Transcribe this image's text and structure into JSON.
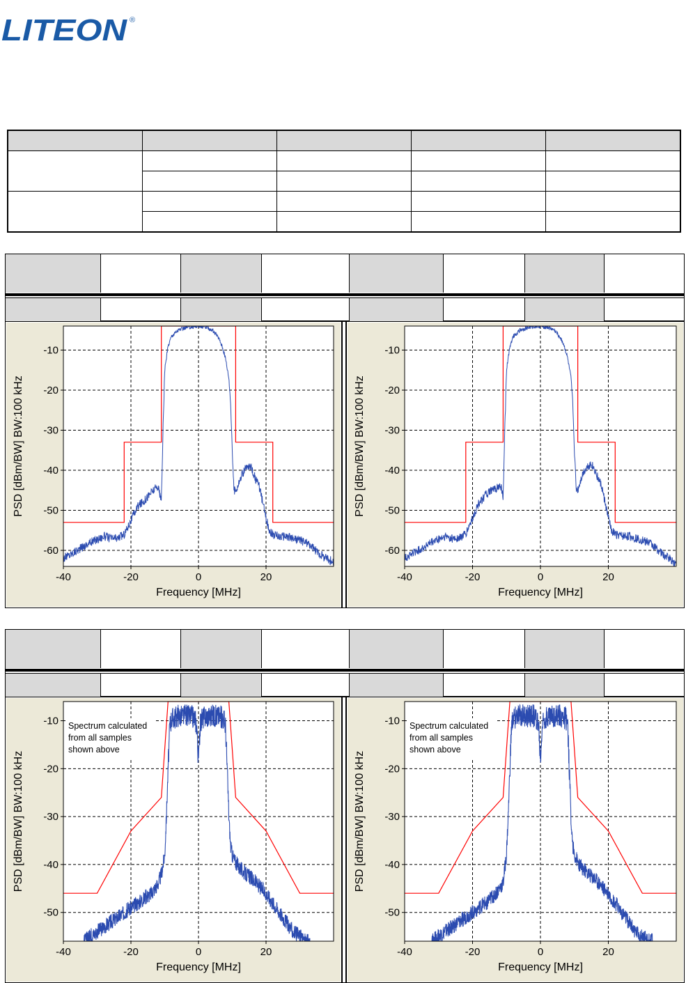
{
  "logo": {
    "text": "LITEON",
    "registered": "®",
    "color": "#1a5aa6"
  },
  "colors": {
    "panel_bg": "#ece9d8",
    "trace": "#2b4bb0",
    "mask": "#ff0000",
    "grid": "#000000",
    "header_gray": "#d9d9d9"
  },
  "chart_data": [
    {
      "type": "line",
      "xlabel": "Frequency [MHz]",
      "ylabel": "PSD  [dBm/BW]  BW:100 kHz",
      "xlim": [
        -40,
        40
      ],
      "ylim": [
        -64,
        -4
      ],
      "xticks": [
        -40,
        -20,
        0,
        20
      ],
      "yticks": [
        -10,
        -20,
        -30,
        -40,
        -50,
        -60
      ],
      "grid": true,
      "annotation": "",
      "series": [
        {
          "name": "",
          "x": [
            -40,
            -36,
            -32,
            -28,
            -26,
            -24,
            -22,
            -20,
            -18,
            -16,
            -14,
            -12,
            -11.2,
            -11,
            -10.5,
            -10,
            -9,
            -8,
            -6,
            -4,
            -2,
            0,
            2,
            4,
            6,
            7,
            8,
            9,
            9.5,
            10,
            10.5,
            11,
            12,
            13,
            14,
            15,
            16,
            17,
            18,
            19,
            20,
            21,
            22,
            24,
            26,
            28,
            30,
            32,
            34,
            36,
            38,
            40
          ],
          "y": [
            -62,
            -60,
            -58,
            -56.5,
            -57,
            -57,
            -56,
            -52.5,
            -49,
            -47.5,
            -45.5,
            -44,
            -47,
            -48,
            -30,
            -15,
            -9,
            -6.5,
            -5,
            -4.5,
            -4.2,
            -4,
            -4.3,
            -5,
            -7,
            -9,
            -12,
            -17,
            -23,
            -35,
            -45,
            -45,
            -43,
            -41,
            -39.5,
            -39,
            -40,
            -42.5,
            -44,
            -48,
            -52,
            -55,
            -56,
            -56.5,
            -56.5,
            -57,
            -57.5,
            -58,
            -59.5,
            -61,
            -62,
            -63
          ]
        },
        {
          "name": "",
          "x": [
            -40,
            -22,
            -22,
            -11,
            -11,
            11,
            11,
            22,
            22,
            40
          ],
          "y": [
            -53,
            -53,
            -33,
            -33,
            -4,
            -4,
            -33,
            -33,
            -53,
            -53
          ]
        }
      ]
    },
    {
      "type": "line",
      "xlabel": "Frequency [MHz]",
      "ylabel": "PSD  [dBm/BW]  BW:100 kHz",
      "xlim": [
        -40,
        40
      ],
      "ylim": [
        -64,
        -4
      ],
      "xticks": [
        -40,
        -20,
        0,
        20
      ],
      "yticks": [
        -10,
        -20,
        -30,
        -40,
        -50,
        -60
      ],
      "grid": true,
      "annotation": "",
      "series": [
        {
          "name": "",
          "x": [
            -40,
            -36,
            -32,
            -28,
            -26,
            -24,
            -22,
            -20,
            -18,
            -16,
            -14,
            -12,
            -11.2,
            -11,
            -10.5,
            -10,
            -9,
            -8,
            -6,
            -4,
            -2,
            0,
            2,
            4,
            6,
            7,
            8,
            9,
            9.5,
            10,
            10.5,
            11,
            12,
            13,
            14,
            15,
            16,
            17,
            18,
            19,
            20,
            21,
            22,
            24,
            26,
            28,
            30,
            32,
            34,
            36,
            38,
            40
          ],
          "y": [
            -62,
            -60,
            -58,
            -56.5,
            -57,
            -57,
            -56,
            -52,
            -48,
            -46,
            -45,
            -44,
            -45,
            -48,
            -30,
            -15,
            -9,
            -6.5,
            -5,
            -4.5,
            -4.2,
            -4,
            -4.3,
            -5,
            -7,
            -9,
            -12,
            -17,
            -23,
            -35,
            -44.5,
            -45,
            -42,
            -40,
            -39,
            -38.5,
            -40,
            -42,
            -44,
            -48,
            -52,
            -55,
            -56,
            -56.5,
            -56.5,
            -57,
            -57.5,
            -58,
            -59.5,
            -61,
            -62,
            -63.5
          ]
        },
        {
          "name": "",
          "x": [
            -40,
            -22,
            -22,
            -11,
            -11,
            11,
            11,
            22,
            22,
            40
          ],
          "y": [
            -53,
            -53,
            -33,
            -33,
            -4,
            -4,
            -33,
            -33,
            -53,
            -53
          ]
        }
      ]
    },
    {
      "type": "line",
      "xlabel": "Frequency [MHz]",
      "ylabel": "PSD  [dBm/BW]  BW:100 kHz",
      "xlim": [
        -40,
        40
      ],
      "ylim": [
        -56,
        -6
      ],
      "xticks": [
        -40,
        -20,
        0,
        20
      ],
      "yticks": [
        -10,
        -20,
        -30,
        -40,
        -50
      ],
      "grid": true,
      "annotation": "Spectrum calculated\nfrom all samples\nshown above",
      "series": [
        {
          "name": "",
          "x": [
            -34,
            -30,
            -26,
            -22,
            -18,
            -14,
            -12,
            -11,
            -10,
            -9.5,
            -9,
            -8.5,
            -8,
            -6,
            -4,
            -2,
            -1,
            -0.5,
            -0.2,
            0,
            0.2,
            0.5,
            1,
            2,
            4,
            6,
            7.5,
            8,
            8.5,
            9,
            9.5,
            10,
            11,
            12,
            14,
            16,
            18,
            20,
            22,
            24,
            26,
            28,
            30,
            32,
            33
          ],
          "y": [
            -56,
            -54,
            -52,
            -50,
            -48,
            -46,
            -44,
            -42,
            -38,
            -30,
            -20,
            -11,
            -9.5,
            -9,
            -9,
            -9,
            -9.5,
            -11,
            -16,
            -18,
            -16,
            -11,
            -9.5,
            -9,
            -9,
            -9,
            -9.5,
            -11,
            -20,
            -30,
            -36,
            -38,
            -39.5,
            -40.5,
            -42,
            -43,
            -44.5,
            -46,
            -48,
            -50,
            -52,
            -54,
            -55,
            -56,
            -56
          ]
        },
        {
          "name": "",
          "x": [
            -40,
            -30,
            -20,
            -11,
            -9,
            9,
            11,
            20,
            30,
            40
          ],
          "y": [
            -46,
            -46,
            -33,
            -26,
            -6,
            -6,
            -26,
            -33,
            -46,
            -46
          ]
        }
      ]
    },
    {
      "type": "line",
      "xlabel": "Frequency [MHz]",
      "ylabel": "PSD  [dBm/BW]  BW:100 kHz",
      "xlim": [
        -40,
        40
      ],
      "ylim": [
        -56,
        -6
      ],
      "xticks": [
        -40,
        -20,
        0,
        20
      ],
      "yticks": [
        -10,
        -20,
        -30,
        -40,
        -50
      ],
      "grid": true,
      "annotation": "Spectrum calculated\nfrom all samples\nshown above",
      "series": [
        {
          "name": "",
          "x": [
            -32,
            -28,
            -24,
            -20,
            -16,
            -13,
            -11,
            -10,
            -9.5,
            -9,
            -8.5,
            -8,
            -6,
            -4,
            -2,
            -1,
            -0.5,
            -0.2,
            0,
            0.2,
            0.5,
            1,
            2,
            4,
            6,
            7.5,
            8,
            8.5,
            9,
            9.5,
            10,
            11,
            12,
            14,
            16,
            18,
            20,
            22,
            24,
            26,
            28,
            30,
            32,
            33
          ],
          "y": [
            -56,
            -54,
            -52,
            -50,
            -48,
            -46,
            -44,
            -38,
            -30,
            -20,
            -11,
            -9.5,
            -9,
            -9,
            -9,
            -9.5,
            -11,
            -16,
            -18,
            -16,
            -11,
            -9.5,
            -9,
            -9,
            -9,
            -9.5,
            -11,
            -20,
            -30,
            -36,
            -38,
            -39.5,
            -40.5,
            -42,
            -43,
            -44.5,
            -46,
            -48,
            -50,
            -52,
            -54,
            -55,
            -56,
            -56
          ]
        },
        {
          "name": "",
          "x": [
            -40,
            -30,
            -20,
            -11,
            -9,
            9,
            11,
            20,
            30,
            40
          ],
          "y": [
            -46,
            -46,
            -33,
            -26,
            -6,
            -6,
            -26,
            -33,
            -46,
            -46
          ]
        }
      ]
    }
  ]
}
